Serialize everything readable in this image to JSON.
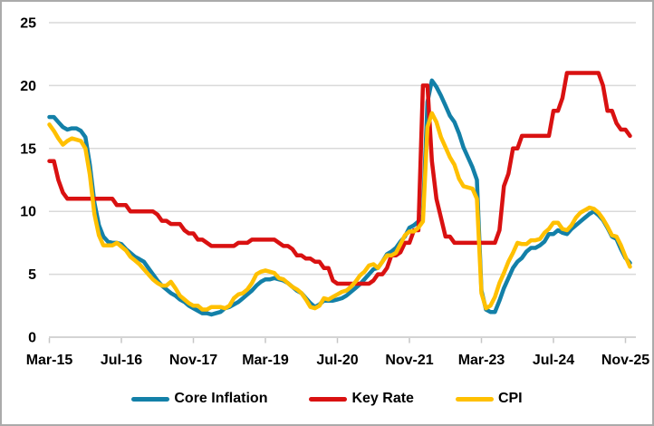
{
  "chart_data": {
    "type": "line",
    "title": "",
    "xlabel": "",
    "ylabel": "",
    "x_unit": "months, Mar-2015 to Dec-2025",
    "ylim": [
      0,
      25
    ],
    "grid": "horizontal",
    "legend_position": "bottom",
    "y_axis": {
      "ticks": [
        0,
        5,
        10,
        15,
        20,
        25
      ]
    },
    "x_axis": {
      "ticks": [
        {
          "month": 0,
          "label": "Mar-15"
        },
        {
          "month": 16,
          "label": "Jul-16"
        },
        {
          "month": 32,
          "label": "Nov-17"
        },
        {
          "month": 48,
          "label": "Mar-19"
        },
        {
          "month": 64,
          "label": "Jul-20"
        },
        {
          "month": 80,
          "label": "Nov-21"
        },
        {
          "month": 96,
          "label": "Mar-23"
        },
        {
          "month": 112,
          "label": "Jul-24"
        },
        {
          "month": 128,
          "label": "Nov-25"
        }
      ]
    },
    "series": [
      {
        "name": "Core Inflation",
        "color": "#1380A8",
        "values": [
          17.5,
          17.5,
          17.1,
          16.7,
          16.5,
          16.6,
          16.6,
          16.4,
          15.9,
          13.7,
          10.7,
          8.9,
          8.0,
          7.6,
          7.5,
          7.5,
          7.4,
          7.0,
          6.7,
          6.4,
          6.2,
          6.0,
          5.5,
          5.0,
          4.5,
          4.1,
          3.8,
          3.5,
          3.3,
          3.0,
          2.8,
          2.5,
          2.3,
          2.1,
          1.9,
          1.9,
          1.8,
          1.9,
          2.0,
          2.3,
          2.4,
          2.6,
          2.8,
          3.1,
          3.4,
          3.7,
          4.1,
          4.4,
          4.6,
          4.6,
          4.7,
          4.6,
          4.5,
          4.3,
          4.0,
          3.7,
          3.5,
          3.1,
          2.7,
          2.4,
          2.6,
          2.9,
          2.9,
          2.9,
          3.0,
          3.1,
          3.3,
          3.6,
          3.9,
          4.2,
          4.6,
          5.0,
          5.4,
          5.5,
          6.0,
          6.6,
          6.8,
          7.1,
          7.6,
          8.0,
          8.7,
          8.9,
          9.2,
          9.7,
          18.7,
          20.4,
          19.9,
          19.2,
          18.4,
          17.6,
          17.1,
          16.2,
          15.1,
          14.3,
          13.5,
          12.5,
          3.7,
          2.2,
          2.0,
          2.0,
          2.9,
          3.9,
          4.7,
          5.5,
          6.0,
          6.3,
          6.8,
          7.1,
          7.1,
          7.3,
          7.6,
          8.2,
          8.2,
          8.5,
          8.3,
          8.2,
          8.6,
          8.9,
          9.2,
          9.5,
          9.8,
          10.0,
          9.7,
          9.3,
          8.7,
          8.0,
          7.8,
          7.0,
          6.3,
          5.9
        ]
      },
      {
        "name": "Key Rate",
        "color": "#D91111",
        "values": [
          14,
          14,
          12.5,
          11.5,
          11,
          11,
          11,
          11,
          11,
          11,
          11,
          11,
          11,
          11,
          11,
          10.5,
          10.5,
          10.5,
          10,
          10,
          10,
          10,
          10,
          10,
          9.75,
          9.25,
          9.25,
          9,
          9,
          9,
          8.5,
          8.25,
          8.25,
          7.75,
          7.75,
          7.5,
          7.25,
          7.25,
          7.25,
          7.25,
          7.25,
          7.25,
          7.5,
          7.5,
          7.5,
          7.75,
          7.75,
          7.75,
          7.75,
          7.75,
          7.75,
          7.5,
          7.25,
          7.25,
          7,
          6.5,
          6.5,
          6.25,
          6.25,
          6,
          6,
          5.5,
          5.5,
          4.5,
          4.25,
          4.25,
          4.25,
          4.25,
          4.25,
          4.25,
          4.25,
          4.25,
          4.5,
          5,
          5,
          5.5,
          6.5,
          6.5,
          6.75,
          7.5,
          7.5,
          8.5,
          8.5,
          20,
          20,
          14,
          11,
          9.5,
          8,
          8,
          7.5,
          7.5,
          7.5,
          7.5,
          7.5,
          7.5,
          7.5,
          7.5,
          7.5,
          7.5,
          8.5,
          12,
          13,
          15,
          15,
          16,
          16,
          16,
          16,
          16,
          16,
          16,
          18,
          18,
          19,
          21,
          21,
          21,
          21,
          21,
          21,
          21,
          21,
          20,
          18,
          18,
          17,
          16.5,
          16.5,
          16
        ]
      },
      {
        "name": "CPI",
        "color": "#FFC000",
        "values": [
          16.9,
          16.4,
          15.8,
          15.3,
          15.6,
          15.8,
          15.7,
          15.6,
          15.0,
          12.9,
          9.8,
          8.1,
          7.3,
          7.3,
          7.3,
          7.5,
          7.2,
          6.9,
          6.4,
          6.1,
          5.8,
          5.4,
          5.0,
          4.6,
          4.3,
          4.1,
          4.1,
          4.4,
          3.9,
          3.3,
          3.0,
          2.7,
          2.5,
          2.5,
          2.2,
          2.2,
          2.4,
          2.4,
          2.4,
          2.3,
          2.5,
          3.1,
          3.4,
          3.5,
          3.8,
          4.3,
          5.0,
          5.2,
          5.3,
          5.2,
          5.1,
          4.7,
          4.6,
          4.3,
          4.0,
          3.8,
          3.5,
          3.0,
          2.4,
          2.3,
          2.5,
          3.1,
          3.0,
          3.2,
          3.4,
          3.6,
          3.7,
          4.0,
          4.4,
          4.9,
          5.2,
          5.7,
          5.8,
          5.5,
          6.0,
          6.5,
          6.5,
          6.7,
          7.4,
          8.1,
          8.4,
          8.4,
          8.7,
          9.2,
          16.7,
          17.8,
          17.1,
          15.9,
          15.1,
          14.3,
          13.7,
          12.6,
          12.0,
          11.9,
          11.8,
          11.0,
          3.5,
          2.3,
          2.5,
          3.2,
          4.3,
          5.1,
          6.0,
          6.7,
          7.5,
          7.4,
          7.4,
          7.7,
          7.7,
          7.8,
          8.3,
          8.6,
          9.1,
          9.1,
          8.6,
          8.5,
          8.9,
          9.5,
          9.9,
          10.1,
          10.3,
          10.2,
          9.9,
          9.4,
          8.8,
          8.1,
          8.0,
          7.3,
          6.4,
          5.6
        ]
      }
    ],
    "style_colors": {
      "gridline": "#D9D9D9",
      "axis": "#C6C6C6",
      "text": "#000000",
      "background": "#FFFFFF",
      "frame_border": "#ABABAB"
    }
  }
}
